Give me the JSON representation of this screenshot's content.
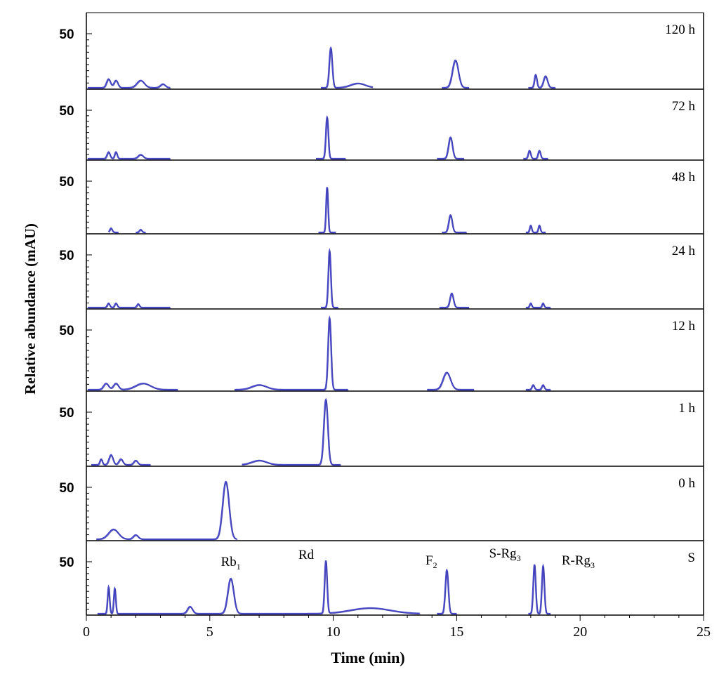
{
  "chart_data": {
    "type": "line",
    "xlabel": "Time (min)",
    "ylabel": "Relative abundance (mAU)",
    "xlim": [
      0,
      25
    ],
    "xticks": [
      0,
      5,
      10,
      15,
      20,
      25
    ],
    "ytick_label": "50",
    "line_color": "#4a4acb",
    "panels": [
      {
        "label": "120 h",
        "baseline_to": 15.5,
        "peaks": [
          [
            0.9,
            0.12,
            0.08
          ],
          [
            1.2,
            0.1,
            0.08
          ],
          [
            2.2,
            0.1,
            0.15
          ],
          [
            3.1,
            0.05,
            0.1
          ],
          [
            9.9,
            0.55,
            0.06
          ],
          [
            11.0,
            0.06,
            0.3
          ],
          [
            14.95,
            0.38,
            0.12
          ],
          [
            18.2,
            0.18,
            0.05
          ],
          [
            18.6,
            0.16,
            0.08
          ]
        ],
        "segments": [
          [
            0.05,
            3.4
          ],
          [
            9.5,
            11.6
          ],
          [
            14.4,
            15.5
          ],
          [
            17.9,
            19.0
          ]
        ]
      },
      {
        "label": "72 h",
        "baseline_to": 15.5,
        "peaks": [
          [
            0.9,
            0.1,
            0.06
          ],
          [
            1.2,
            0.1,
            0.05
          ],
          [
            2.2,
            0.06,
            0.1
          ],
          [
            9.75,
            0.62,
            0.05
          ],
          [
            14.75,
            0.32,
            0.08
          ],
          [
            17.95,
            0.12,
            0.05
          ],
          [
            18.35,
            0.12,
            0.05
          ]
        ],
        "segments": [
          [
            0.05,
            3.4
          ],
          [
            9.3,
            10.5
          ],
          [
            14.2,
            15.3
          ],
          [
            17.7,
            18.7
          ]
        ]
      },
      {
        "label": "48 h",
        "baseline_to": 15.5,
        "peaks": [
          [
            1.0,
            0.06,
            0.05
          ],
          [
            2.2,
            0.04,
            0.05
          ],
          [
            9.75,
            0.65,
            0.04
          ],
          [
            14.75,
            0.25,
            0.07
          ],
          [
            18.0,
            0.1,
            0.04
          ],
          [
            18.35,
            0.1,
            0.04
          ]
        ],
        "segments": [
          [
            0.9,
            1.3
          ],
          [
            2.0,
            2.4
          ],
          [
            9.4,
            10.1
          ],
          [
            14.4,
            15.4
          ],
          [
            17.8,
            18.6
          ]
        ]
      },
      {
        "label": "24 h",
        "baseline_to": 15.5,
        "peaks": [
          [
            0.9,
            0.06,
            0.05
          ],
          [
            1.2,
            0.06,
            0.05
          ],
          [
            2.1,
            0.05,
            0.05
          ],
          [
            9.85,
            0.8,
            0.05
          ],
          [
            14.8,
            0.2,
            0.07
          ],
          [
            18.0,
            0.06,
            0.04
          ],
          [
            18.5,
            0.06,
            0.04
          ]
        ],
        "segments": [
          [
            0.05,
            3.4
          ],
          [
            9.5,
            10.2
          ],
          [
            14.3,
            15.5
          ],
          [
            17.8,
            18.8
          ]
        ]
      },
      {
        "label": "12 h",
        "baseline_to": 15.5,
        "peaks": [
          [
            0.8,
            0.08,
            0.1
          ],
          [
            1.2,
            0.08,
            0.1
          ],
          [
            2.3,
            0.08,
            0.3
          ],
          [
            7.0,
            0.06,
            0.3
          ],
          [
            9.85,
            0.92,
            0.06
          ],
          [
            14.6,
            0.22,
            0.15
          ],
          [
            18.1,
            0.06,
            0.05
          ],
          [
            18.5,
            0.06,
            0.05
          ]
        ],
        "segments": [
          [
            0.05,
            3.7
          ],
          [
            6.0,
            10.6
          ],
          [
            13.8,
            15.7
          ],
          [
            17.8,
            18.8
          ]
        ]
      },
      {
        "label": "1 h",
        "baseline_to": 10.5,
        "peaks": [
          [
            0.6,
            0.08,
            0.05
          ],
          [
            1.0,
            0.14,
            0.08
          ],
          [
            1.4,
            0.08,
            0.08
          ],
          [
            2.0,
            0.06,
            0.08
          ],
          [
            7.0,
            0.06,
            0.3
          ],
          [
            9.7,
            0.92,
            0.08
          ]
        ],
        "segments": [
          [
            0.2,
            2.6
          ],
          [
            6.3,
            10.3
          ]
        ]
      },
      {
        "label": "0 h",
        "baseline_to": 6.2,
        "peaks": [
          [
            1.1,
            0.14,
            0.2
          ],
          [
            2.0,
            0.06,
            0.1
          ],
          [
            5.65,
            0.82,
            0.13
          ]
        ],
        "segments": [
          [
            0.4,
            6.1
          ]
        ]
      },
      {
        "label": "S",
        "baseline_to": 25,
        "peaks": [
          [
            0.9,
            0.38,
            0.04
          ],
          [
            1.15,
            0.36,
            0.04
          ],
          [
            4.2,
            0.1,
            0.1
          ],
          [
            5.85,
            0.5,
            0.12
          ],
          [
            9.7,
            0.75,
            0.05
          ],
          [
            11.5,
            0.08,
            0.8
          ],
          [
            14.6,
            0.62,
            0.06
          ],
          [
            18.15,
            0.7,
            0.05
          ],
          [
            18.5,
            0.68,
            0.05
          ]
        ],
        "segments": [
          [
            0.45,
            13.5
          ],
          [
            14.2,
            15.0
          ],
          [
            17.9,
            18.8
          ]
        ]
      }
    ],
    "peak_labels": [
      {
        "text": "Rb",
        "sub": "1",
        "x": 5.85
      },
      {
        "text": "Rd",
        "sub": "",
        "x": 9.7
      },
      {
        "text": "F",
        "sub": "2",
        "x": 14.6
      },
      {
        "text": "S-Rg",
        "sub": "3",
        "x": 18.15
      },
      {
        "text": "R-Rg",
        "sub": "3",
        "x": 18.5
      }
    ]
  }
}
